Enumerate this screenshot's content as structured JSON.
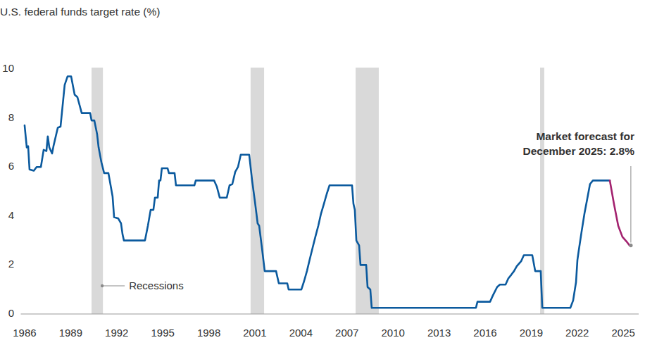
{
  "chart_data": {
    "type": "line",
    "title": "U.S. federal funds target rate (%)",
    "xlim": [
      1985.75,
      2026
    ],
    "xticks": [
      1986,
      1989,
      1992,
      1995,
      1998,
      2001,
      2004,
      2007,
      2010,
      2013,
      2016,
      2019,
      2022,
      2025
    ],
    "ylim": [
      0,
      10
    ],
    "yticks": [
      0,
      2,
      4,
      6,
      8,
      10
    ],
    "grid": false,
    "series": [
      {
        "color": "#0b5a9e",
        "x": [
          1986.0,
          1986.14,
          1986.23,
          1986.32,
          1986.6,
          1986.78,
          1987.06,
          1987.24,
          1987.42,
          1987.51,
          1987.61,
          1987.79,
          1987.88,
          1988.16,
          1988.34,
          1988.61,
          1988.8,
          1989.03,
          1989.26,
          1989.44,
          1989.72,
          1990.27,
          1990.36,
          1990.54,
          1990.72,
          1990.82,
          1991.0,
          1991.18,
          1991.46,
          1991.73,
          1991.83,
          1992.1,
          1992.28,
          1992.38,
          1992.47,
          1993.84,
          1994.03,
          1994.21,
          1994.39,
          1994.49,
          1994.67,
          1994.76,
          1994.85,
          1994.94,
          1995.31,
          1995.4,
          1995.77,
          1995.86,
          1997.06,
          1997.15,
          1998.34,
          1998.52,
          1998.71,
          1999.17,
          1999.35,
          1999.53,
          1999.72,
          1999.9,
          2000.08,
          2000.63,
          2000.82,
          2001.0,
          2001.18,
          2001.28,
          2001.46,
          2001.64,
          2002.38,
          2002.56,
          2003.11,
          2003.2,
          2004.03,
          2004.21,
          2004.39,
          2004.58,
          2004.76,
          2004.94,
          2005.13,
          2005.31,
          2005.5,
          2005.68,
          2005.86,
          2006.05,
          2007.33,
          2007.42,
          2007.51,
          2007.61,
          2007.79,
          2007.88,
          2008.25,
          2008.34,
          2008.52,
          2008.61,
          2015.4,
          2015.5,
          2016.32,
          2016.5,
          2016.78,
          2016.96,
          2017.33,
          2017.51,
          2017.7,
          2017.88,
          2018.06,
          2018.34,
          2018.52,
          2019.07,
          2019.26,
          2019.62,
          2019.72,
          2021.55,
          2021.73,
          2021.92,
          2022.01,
          2022.1,
          2022.28,
          2022.47,
          2022.65,
          2022.83,
          2023.02,
          2024.12
        ],
        "values": [
          7.7,
          6.8,
          6.85,
          5.9,
          5.85,
          6.0,
          6.0,
          6.7,
          6.65,
          7.25,
          6.8,
          6.55,
          6.85,
          7.6,
          7.65,
          9.35,
          9.7,
          9.7,
          8.95,
          8.85,
          8.2,
          8.2,
          7.9,
          7.9,
          7.35,
          6.8,
          6.2,
          5.75,
          5.75,
          4.8,
          3.95,
          3.9,
          3.7,
          3.25,
          3.0,
          3.0,
          3.6,
          4.25,
          4.25,
          4.75,
          4.75,
          5.45,
          5.45,
          5.95,
          5.95,
          5.75,
          5.75,
          5.25,
          5.25,
          5.45,
          5.45,
          5.2,
          4.75,
          4.75,
          5.25,
          5.3,
          5.8,
          6.0,
          6.5,
          6.5,
          5.45,
          4.6,
          3.7,
          3.6,
          2.7,
          1.75,
          1.75,
          1.25,
          1.25,
          1.0,
          1.0,
          1.35,
          1.75,
          2.25,
          2.7,
          3.15,
          3.6,
          4.1,
          4.5,
          4.9,
          5.25,
          5.25,
          5.25,
          4.5,
          4.25,
          3.0,
          2.8,
          2.0,
          2.0,
          1.1,
          1.0,
          0.25,
          0.25,
          0.5,
          0.5,
          0.75,
          1.1,
          1.2,
          1.2,
          1.45,
          1.6,
          1.75,
          1.95,
          2.15,
          2.4,
          2.4,
          1.75,
          1.75,
          0.25,
          0.25,
          0.55,
          1.3,
          2.2,
          2.6,
          3.35,
          4.1,
          4.7,
          5.3,
          5.45,
          5.45
        ]
      },
      {
        "color": "#a3226f",
        "x": [
          2024.12,
          2024.39,
          2024.67,
          2024.94,
          2025.22,
          2025.4
        ],
        "values": [
          5.45,
          4.5,
          3.6,
          3.15,
          2.95,
          2.8
        ]
      }
    ],
    "recessions": [
      {
        "start": 1990.36,
        "end": 1991.1
      },
      {
        "start": 2000.72,
        "end": 2001.6
      },
      {
        "start": 2007.56,
        "end": 2009.07
      },
      {
        "start": 2019.58,
        "end": 2019.85
      }
    ],
    "recession_color": "#d9d9d9",
    "recession_label": "Recessions",
    "annotation": [
      "Market forecast for",
      "December 2025: 2.8%"
    ]
  }
}
